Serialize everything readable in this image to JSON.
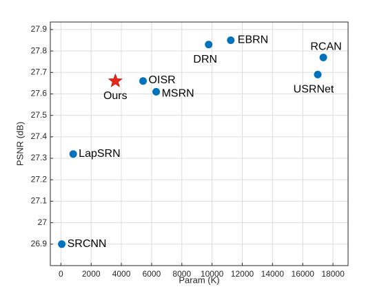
{
  "chart_data": {
    "type": "scatter",
    "xlabel": "Param (K)",
    "ylabel": "PSNR (dB)",
    "point_labels": [
      "SRCNN",
      "LapSRN",
      "Ours",
      "OISR",
      "MSRN",
      "DRN",
      "EBRN",
      "USRNet",
      "RCAN"
    ],
    "x": [
      57,
      813,
      3600,
      5436,
      6304,
      9776,
      11238,
      16994,
      17360
    ],
    "values": [
      26.9,
      27.32,
      27.66,
      27.66,
      27.61,
      27.83,
      27.85,
      27.69,
      27.77
    ],
    "colors": [
      "#0072bd",
      "#0072bd",
      "#e8261a",
      "#0072bd",
      "#0072bd",
      "#0072bd",
      "#0072bd",
      "#0072bd",
      "#0072bd"
    ],
    "markers": [
      "circle",
      "circle",
      "star",
      "circle",
      "circle",
      "circle",
      "circle",
      "circle",
      "circle"
    ],
    "xlim": [
      -700,
      19000
    ],
    "xticks": [
      0,
      2000,
      4000,
      6000,
      8000,
      10000,
      12000,
      14000,
      16000,
      18000
    ],
    "ylim": [
      26.8,
      27.935
    ],
    "yticks": [
      26.9,
      27,
      27.1,
      27.2,
      27.3,
      27.4,
      27.5,
      27.6,
      27.7,
      27.8,
      27.9
    ],
    "grid": true
  }
}
